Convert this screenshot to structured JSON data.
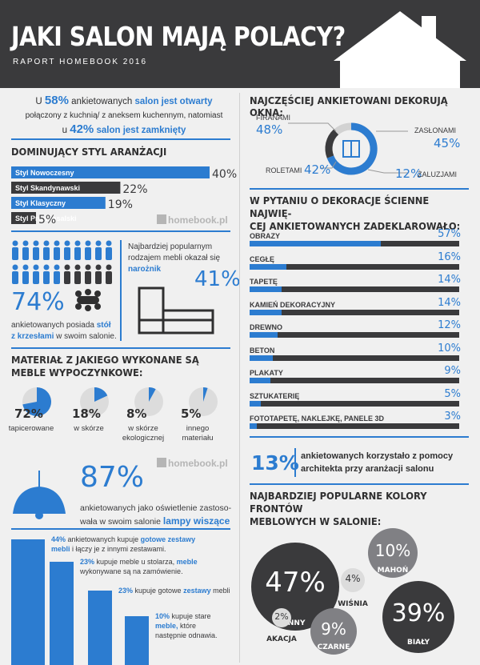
{
  "header": {
    "title": "JAKI SALON MAJĄ POLACY?",
    "subtitle": "RAPORT HOMEBOOK 2016"
  },
  "open_salon": {
    "l1a": "U",
    "l1b": "58%",
    "l1c": "ankietowanych",
    "l1d": "salon jest otwarty",
    "l2": "połączony z kuchnią/ z aneksem kuchennym, natomiast",
    "l3a": "u",
    "l3b": "42%",
    "l3c": "salon jest zamknięty"
  },
  "style": {
    "title": "DOMINUJĄCY STYL ARANŻACJI"
  },
  "watermark": "homebook.pl",
  "people": {
    "big": "74%",
    "text1": "ankietowanych posiada",
    "bold1": "stół",
    "bold2": "z krzesłami",
    "text2": "w swoim salonie."
  },
  "corner": {
    "text": "Najbardziej popularnym rodzajem mebli okazał się",
    "bold": "narożnik",
    "big": "41%"
  },
  "material": {
    "title": "MATERIAŁ Z JAKIEGO WYKONANE SĄ MEBLE WYPOCZYNKOWE:",
    "items": [
      {
        "label": "tapicerowane",
        "val": "72%"
      },
      {
        "label": "w skórze",
        "val": "18%"
      },
      {
        "label": "w skórze ekologicznej",
        "val": "8%"
      },
      {
        "label": "innego materiału",
        "val": "5%"
      }
    ]
  },
  "lamp": {
    "big": "87%",
    "l1": "ankietowanych jako oświetlenie zastoso-",
    "l2": "wała w swoim salonie",
    "bold": "lampy wiszące"
  },
  "steps": [
    {
      "a": "44%",
      "b": "ankietowanych kupuje",
      "c": "gotowe zestawy mebli",
      "d": "i łączy je z innymi zestawami."
    },
    {
      "a": "23%",
      "b": "kupuje meble u stolarza,",
      "c": "meble",
      "d": "wykonywane są na zamówienie."
    },
    {
      "a": "23%",
      "b": "kupuje gotowe",
      "c": "zestawy",
      "d": "mebli"
    },
    {
      "a": "10%",
      "b": "kupuje stare",
      "c": "meble,",
      "d": "które następnie odnawia."
    }
  ],
  "windows": {
    "title": "NAJCZĘŚCIEJ ANKIETOWANI DEKORUJĄ OKNA:",
    "firanami": "FIRANAMI",
    "firanami_v": "48%",
    "zaslonami": "ZASŁONAMI",
    "zaslonami_v": "45%",
    "roletami": "ROLETAMI",
    "roletami_v": "42%",
    "zaluzjami": "ŻALUZJAMI",
    "zaluzjami_v": "12%"
  },
  "walls": {
    "title1": "W PYTANIU O DEKORACJE ŚCIENNE NAJWIĘ-",
    "title2": "CEJ ANKIETOWANYCH ZADEKLAROWAŁO:"
  },
  "architect": {
    "big": "13%",
    "l1": "ankietowanych korzystało z pomocy",
    "l2": "architekta przy aranżacji salonu"
  },
  "colors": {
    "title1": "NAJBARDZIEJ POPULARNE KOLORY FRONTÓW",
    "title2": "MEBLOWYCH W SALONIE:",
    "items": [
      {
        "label": "INNY",
        "val": "47%"
      },
      {
        "label": "MAHOŃ",
        "val": "10%"
      },
      {
        "label": "WIŚNIA",
        "val": "4%"
      },
      {
        "label": "AKACJA",
        "val": "2%"
      },
      {
        "label": "CZARNE",
        "val": "9%"
      },
      {
        "label": "BIAŁY",
        "val": "39%"
      }
    ]
  },
  "chart_data": [
    {
      "type": "bar",
      "title": "DOMINUJĄCY STYL ARANŻACJI",
      "categories": [
        "Styl Nowoczesny",
        "Styl Skandynawski",
        "Styl Klasyczny",
        "Styl Prowansalski"
      ],
      "values": [
        40,
        22,
        19,
        5
      ],
      "labels": [
        "40%",
        "22%",
        "19%",
        "5%"
      ],
      "colors": [
        "#2c7cd0",
        "#3a3a3c",
        "#2c7cd0",
        "#3a3a3c"
      ]
    },
    {
      "type": "bar",
      "title": "W PYTANIU O DEKORACJE ŚCIENNE NAJWIĘCEJ ANKIETOWANYCH ZADEKLAROWAŁO:",
      "categories": [
        "OBRAZY",
        "CEGŁĘ",
        "TAPETĘ",
        "KAMIEŃ DEKORACYJNY",
        "DREWNO",
        "BETON",
        "PLAKATY",
        "SZTUKATERIĘ",
        "FOTOTAPETĘ, NAKLEJKĘ, PANELE 3D"
      ],
      "values": [
        57,
        16,
        14,
        14,
        12,
        10,
        9,
        5,
        3
      ],
      "labels": [
        "57%",
        "16%",
        "14%",
        "14%",
        "12%",
        "10%",
        "9%",
        "5%",
        "3%"
      ]
    }
  ]
}
